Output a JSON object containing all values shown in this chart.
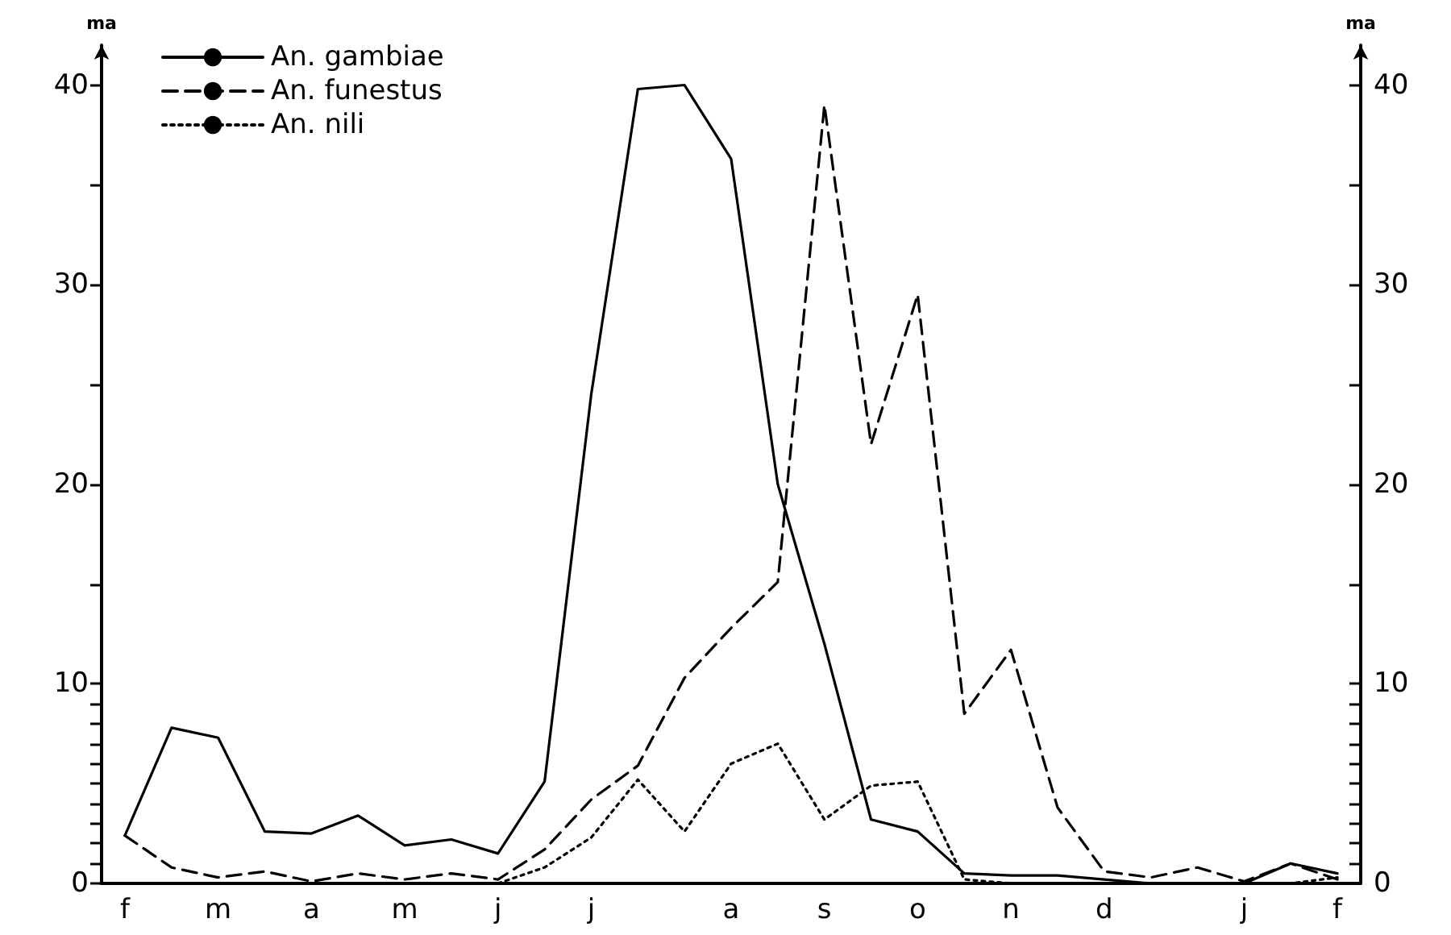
{
  "chart_data": {
    "type": "line",
    "ylabel": "ma",
    "y2label": "ma",
    "categories": [
      "f",
      null,
      "m",
      null,
      "a",
      null,
      "m",
      null,
      "j",
      null,
      "j",
      null,
      null,
      "a",
      null,
      "s",
      null,
      "o",
      null,
      "n",
      null,
      "d",
      null,
      null,
      "j",
      null,
      "f"
    ],
    "series": [
      {
        "name": "An. gambiae",
        "color": "#000000",
        "line_style": "solid",
        "values": [
          2.4,
          7.8,
          7.3,
          2.6,
          2.5,
          3.4,
          1.9,
          2.2,
          1.5,
          5.1,
          24.5,
          39.8,
          40,
          36.3,
          20,
          12,
          3.2,
          2.6,
          0.5,
          0.4,
          0.4,
          0.2,
          0,
          0,
          0,
          1.0,
          0.5
        ]
      },
      {
        "name": "An. funestus",
        "color": "#000000",
        "line_style": "dashed",
        "values": [
          2.4,
          0.8,
          0.3,
          0.6,
          0.1,
          0.5,
          0.2,
          0.5,
          0.2,
          1.7,
          4.2,
          5.9,
          10.3,
          12.8,
          15.1,
          39,
          22,
          29.5,
          8.5,
          11.7,
          3.8,
          0.6,
          0.3,
          0.8,
          0.1,
          1.0,
          0.2
        ]
      },
      {
        "name": "An. nili",
        "color": "#000000",
        "line_style": "dotted",
        "values": [
          null,
          null,
          null,
          null,
          null,
          null,
          null,
          null,
          0,
          0.8,
          2.3,
          5.2,
          2.6,
          6.0,
          7.0,
          3.2,
          4.9,
          5.1,
          0.2,
          0,
          0,
          0,
          0,
          0,
          0,
          0,
          0.3
        ]
      }
    ],
    "ylim": [
      0,
      42
    ],
    "yticks": [
      0,
      {
        "value": 1,
        "label": null
      },
      {
        "value": 2,
        "label": null
      },
      {
        "value": 3,
        "label": null
      },
      {
        "value": 4,
        "label": null
      },
      {
        "value": 5,
        "label": null
      },
      {
        "value": 6,
        "label": null
      },
      {
        "value": 7,
        "label": null
      },
      {
        "value": 8,
        "label": null
      },
      {
        "value": 9,
        "label": null
      },
      10,
      {
        "value": 15,
        "label": null
      },
      20,
      {
        "value": 25,
        "label": null
      },
      30,
      {
        "value": 35,
        "label": null
      },
      40
    ],
    "y2lim": [
      0,
      42
    ],
    "y2ticks": [
      0,
      {
        "value": 1,
        "label": null
      },
      {
        "value": 2,
        "label": null
      },
      {
        "value": 3,
        "label": null
      },
      {
        "value": 4,
        "label": null
      },
      {
        "value": 5,
        "label": null
      },
      {
        "value": 6,
        "label": null
      },
      {
        "value": 7,
        "label": null
      },
      {
        "value": 8,
        "label": null
      },
      {
        "value": 9,
        "label": null
      },
      10,
      {
        "value": 15,
        "label": null
      },
      20,
      {
        "value": 25,
        "label": null
      },
      30,
      {
        "value": 35,
        "label": null
      },
      40
    ],
    "grid": false,
    "legend": "top left",
    "marker": "none"
  }
}
